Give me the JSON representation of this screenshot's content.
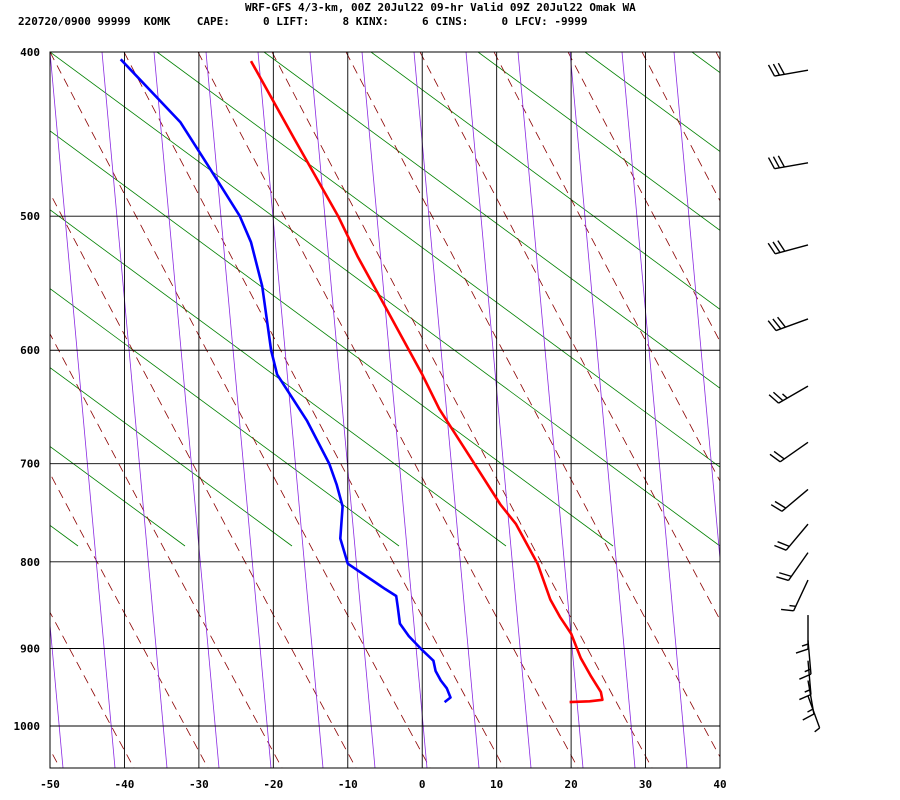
{
  "header": {
    "title": "WRF-GFS 4/3-km, 00Z 20Jul22 09-hr Valid 09Z 20Jul22 Omak WA",
    "stats": "220720/0900 99999  KOMK    CAPE:     0 LIFT:     8 KINX:     6 CINS:     0 LFCV: -9999"
  },
  "chart_data": {
    "type": "skew-t",
    "title": "WRF-GFS 4/3-km, 00Z 20Jul22 09-hr Valid 09Z 20Jul22 Omak WA",
    "xlabel": "",
    "ylabel": "",
    "x_ticks": [
      -50,
      -40,
      -30,
      -20,
      -10,
      0,
      10,
      20,
      30,
      40
    ],
    "y_ticks": [
      400,
      500,
      600,
      700,
      800,
      900,
      1000
    ],
    "xlim": [
      -50,
      40
    ],
    "pressure_range": [
      1040,
      400
    ],
    "temperature_color": "#ff0000",
    "dewpoint_color": "#0000ff",
    "dry_adiabat_color": "#008000",
    "moist_adiabat_color": "#8b0000",
    "mixing_ratio_color": "#8a2be2",
    "series": [
      {
        "key": "temperature",
        "points": [
          {
            "p": 968,
            "t": 19.8
          },
          {
            "p": 967,
            "t": 22.5
          },
          {
            "p": 965,
            "t": 24.2
          },
          {
            "p": 955,
            "t": 24.0
          },
          {
            "p": 935,
            "t": 22.7
          },
          {
            "p": 912,
            "t": 21.3
          },
          {
            "p": 882,
            "t": 20.0
          },
          {
            "p": 862,
            "t": 18.5
          },
          {
            "p": 842,
            "t": 17.2
          },
          {
            "p": 802,
            "t": 15.5
          },
          {
            "p": 760,
            "t": 12.6
          },
          {
            "p": 740,
            "t": 10.5
          },
          {
            "p": 700,
            "t": 7.0
          },
          {
            "p": 650,
            "t": 2.3
          },
          {
            "p": 620,
            "t": 0.0
          },
          {
            "p": 560,
            "t": -5.5
          },
          {
            "p": 528,
            "t": -8.7
          },
          {
            "p": 500,
            "t": -11.3
          },
          {
            "p": 450,
            "t": -17.2
          },
          {
            "p": 405,
            "t": -23.0
          }
        ]
      },
      {
        "key": "dewpoint",
        "points": [
          {
            "p": 968,
            "t": 3.0
          },
          {
            "p": 962,
            "t": 3.8
          },
          {
            "p": 950,
            "t": 3.3
          },
          {
            "p": 940,
            "t": 2.5
          },
          {
            "p": 928,
            "t": 1.8
          },
          {
            "p": 915,
            "t": 1.5
          },
          {
            "p": 902,
            "t": 0.0
          },
          {
            "p": 885,
            "t": -1.8
          },
          {
            "p": 870,
            "t": -3.0
          },
          {
            "p": 850,
            "t": -3.3
          },
          {
            "p": 838,
            "t": -3.5
          },
          {
            "p": 830,
            "t": -5.0
          },
          {
            "p": 802,
            "t": -10.0
          },
          {
            "p": 775,
            "t": -11.0
          },
          {
            "p": 742,
            "t": -10.7
          },
          {
            "p": 720,
            "t": -11.5
          },
          {
            "p": 700,
            "t": -12.5
          },
          {
            "p": 660,
            "t": -15.5
          },
          {
            "p": 620,
            "t": -19.5
          },
          {
            "p": 600,
            "t": -20.3
          },
          {
            "p": 550,
            "t": -21.5
          },
          {
            "p": 518,
            "t": -23.0
          },
          {
            "p": 500,
            "t": -24.5
          },
          {
            "p": 465,
            "t": -29.0
          },
          {
            "p": 440,
            "t": -32.5
          },
          {
            "p": 404,
            "t": -40.5
          }
        ]
      }
    ],
    "wind_barbs": [
      {
        "p": 410,
        "dir_deg": 260,
        "speed_kt": 30
      },
      {
        "p": 465,
        "dir_deg": 260,
        "speed_kt": 30
      },
      {
        "p": 520,
        "dir_deg": 255,
        "speed_kt": 30
      },
      {
        "p": 575,
        "dir_deg": 250,
        "speed_kt": 30
      },
      {
        "p": 630,
        "dir_deg": 240,
        "speed_kt": 25
      },
      {
        "p": 680,
        "dir_deg": 235,
        "speed_kt": 20
      },
      {
        "p": 725,
        "dir_deg": 230,
        "speed_kt": 20
      },
      {
        "p": 760,
        "dir_deg": 220,
        "speed_kt": 20
      },
      {
        "p": 790,
        "dir_deg": 215,
        "speed_kt": 20
      },
      {
        "p": 820,
        "dir_deg": 205,
        "speed_kt": 15
      },
      {
        "p": 860,
        "dir_deg": 180,
        "speed_kt": 15
      },
      {
        "p": 890,
        "dir_deg": 175,
        "speed_kt": 15
      },
      {
        "p": 915,
        "dir_deg": 175,
        "speed_kt": 15
      },
      {
        "p": 940,
        "dir_deg": 170,
        "speed_kt": 15
      },
      {
        "p": 960,
        "dir_deg": 160,
        "speed_kt": 5
      }
    ]
  }
}
